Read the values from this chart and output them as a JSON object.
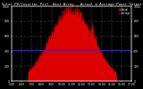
{
  "title": "Solar PV/Inverter Perf. West Array - Actual & Average Power Output",
  "bg_color": "#000000",
  "plot_bg_color": "#000000",
  "grid_color": "#ffffff",
  "bar_color": "#dd0000",
  "avg_line_color": "#2222ff",
  "avg_line_value": 0.42,
  "ylim": [
    0,
    1.0
  ],
  "title_color": "#ffffff",
  "tick_color": "#ffffff",
  "legend_actual_color": "#dd0000",
  "legend_avg_color": "#2222ff",
  "legend_actual_label": "Actual",
  "legend_avg_label": "Average",
  "ytick_labels_left": [
    "0",
    "200",
    "400",
    "600",
    "800",
    "1000"
  ],
  "ytick_labels_right": [
    "0",
    "200",
    "400",
    "600",
    "800",
    "1000"
  ],
  "xtick_labels": [
    "5:00",
    "6:00",
    "7:00",
    "8:00",
    "9:00",
    "10:00",
    "11:00",
    "12:00",
    "13:00",
    "14:00",
    "15:00",
    "16:00",
    "17:00"
  ]
}
